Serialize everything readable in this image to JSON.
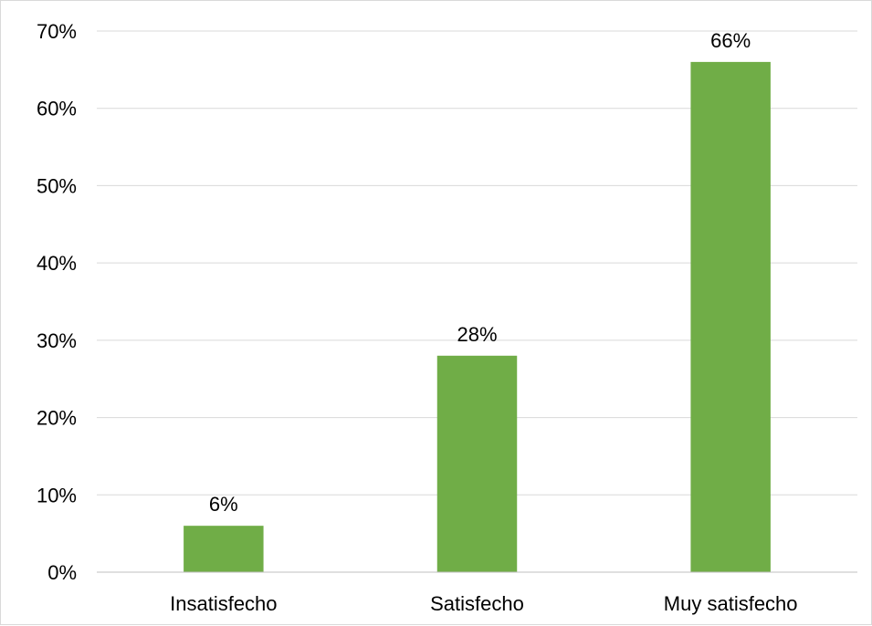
{
  "chart_data": {
    "type": "bar",
    "categories": [
      "Insatisfecho",
      "Satisfecho",
      "Muy satisfecho"
    ],
    "values": [
      6,
      28,
      66
    ],
    "data_labels": [
      "6%",
      "28%",
      "66%"
    ],
    "title": "",
    "xlabel": "",
    "ylabel": "",
    "ylim": [
      0,
      70
    ],
    "yticks": [
      0,
      10,
      20,
      30,
      40,
      50,
      60,
      70
    ],
    "ytick_labels": [
      "0%",
      "10%",
      "20%",
      "30%",
      "40%",
      "50%",
      "60%",
      "70%"
    ],
    "grid": true,
    "legend": "none",
    "bar_color": "#70ad47",
    "grid_color": "#d9d9d9",
    "axis_color": "#bfbfbf"
  }
}
